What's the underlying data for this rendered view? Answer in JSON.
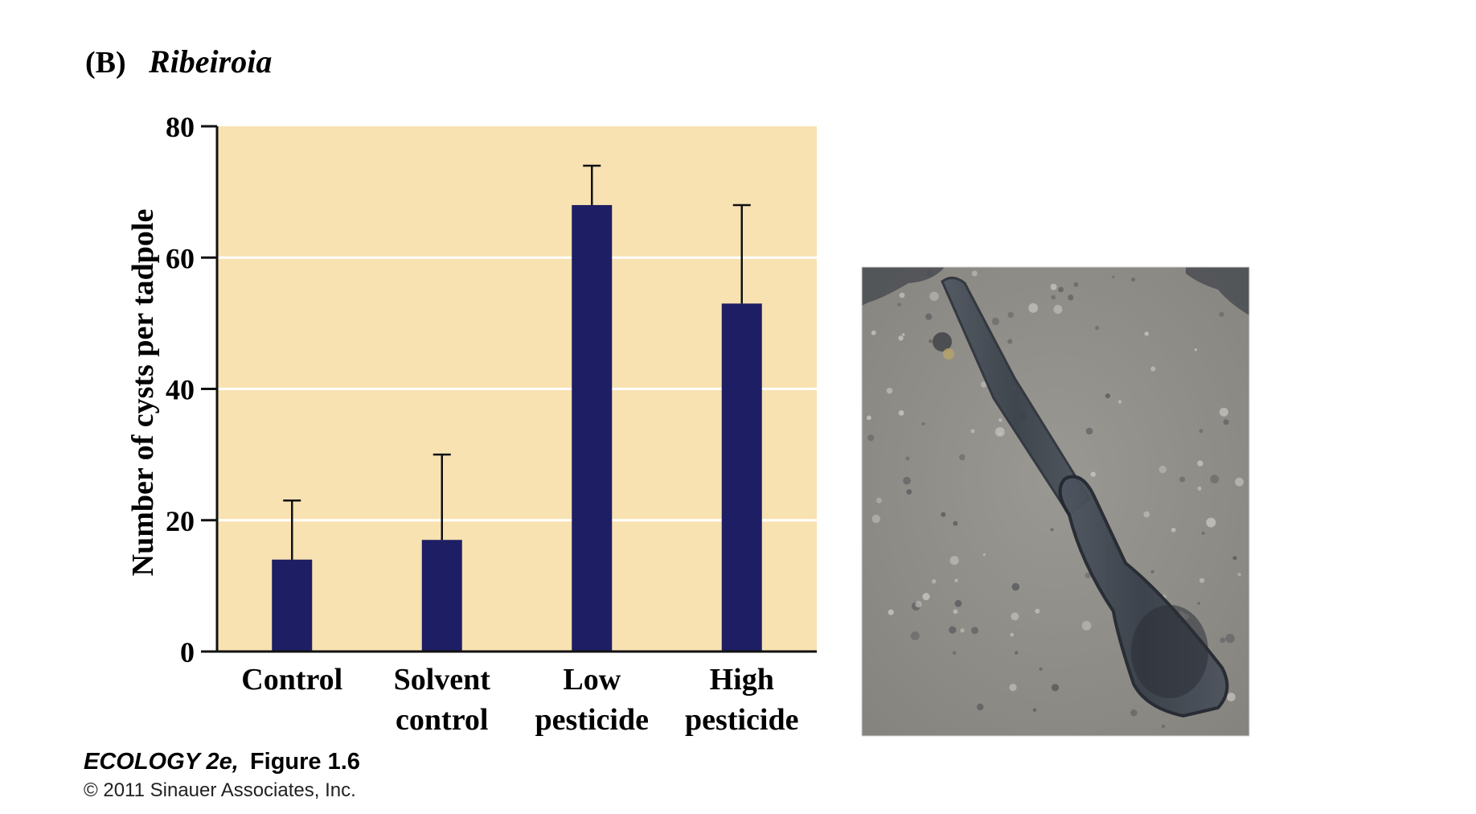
{
  "panel": {
    "label": "(B)",
    "organism": "Ribeiroia"
  },
  "chart_data": {
    "type": "bar",
    "categories": [
      [
        "Control"
      ],
      [
        "Solvent",
        "control"
      ],
      [
        "Low",
        "pesticide"
      ],
      [
        "High",
        "pesticide"
      ]
    ],
    "values": [
      14,
      17,
      68,
      53
    ],
    "error_upper": [
      23,
      30,
      74,
      68
    ],
    "ylabel": "Number of cysts per tadpole",
    "xlabel": "",
    "ylim": [
      0,
      80
    ],
    "yticks": [
      0,
      20,
      40,
      60,
      80
    ],
    "grid": "horizontal, white",
    "colors": {
      "background": "#f8e2b2",
      "bar": "#1e1e64",
      "grid": "#ffffff",
      "axis": "#111111"
    }
  },
  "photo": {
    "description_icon": "parasite-micrograph-icon",
    "colors": {
      "background": "#8f8c87",
      "organism": "#3a3d45"
    }
  },
  "credit": {
    "book": "ECOLOGY 2e,",
    "figure": "Figure 1.6",
    "copyright": "© 2011 Sinauer Associates, Inc."
  }
}
